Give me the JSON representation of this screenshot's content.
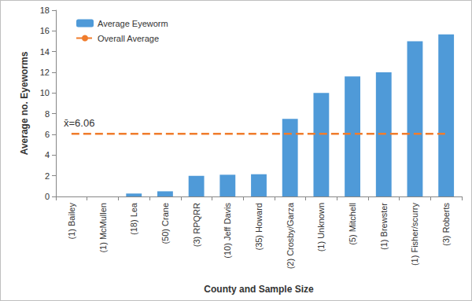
{
  "chart_data": {
    "type": "bar",
    "x_label": "County and Sample Size",
    "y_label": "Average no. Eyeworms",
    "categories": [
      "(1) Bailey",
      "(1) McMullen",
      "(18) Lea",
      "(50) Crane",
      "(3) RPQRR",
      "(10) Jeff Davis",
      "(35) Howard",
      "(2) Crosby/Garza",
      "(1) Unknown",
      "(5) Mitchell",
      "(1) Brewster",
      "(1) Fisher/scurry",
      "(3) Roberts"
    ],
    "series": [
      {
        "name": "Average Eyeworm",
        "type": "bar",
        "color": "#4f9ad8",
        "values": [
          0,
          0,
          0.28,
          0.5,
          2,
          2.1,
          2.15,
          7.5,
          10,
          11.6,
          12,
          15,
          15.67
        ]
      },
      {
        "name": "Overall Average",
        "type": "line",
        "line_style": "dashed",
        "color": "#f07c2c",
        "values": [
          6.06,
          6.06,
          6.06,
          6.06,
          6.06,
          6.06,
          6.06,
          6.06,
          6.06,
          6.06,
          6.06,
          6.06,
          6.06
        ]
      }
    ],
    "annotations": [
      {
        "text": "x̄=6.06",
        "series": "Overall Average"
      }
    ],
    "ylim": [
      0,
      18
    ],
    "yticks": [
      0,
      2,
      4,
      6,
      8,
      10,
      12,
      14,
      16,
      18
    ],
    "grid": false,
    "legend": "upper left"
  }
}
